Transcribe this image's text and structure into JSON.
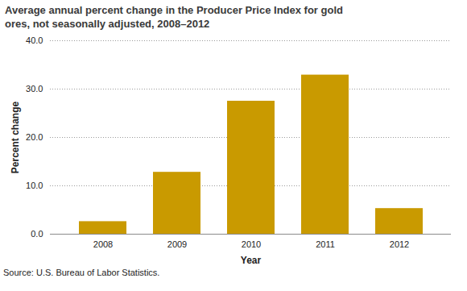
{
  "chart_data": {
    "type": "bar",
    "title": "Average annual percent change in the Producer Price Index for gold ores, not seasonally adjusted, 2008–2012",
    "x_label": "Year",
    "y_label": "Percent change",
    "source": "Source: U.S. Bureau of Labor Statistics.",
    "categories": [
      "2008",
      "2009",
      "2010",
      "2011",
      "2012"
    ],
    "values": [
      2.6,
      12.8,
      27.5,
      32.9,
      5.3
    ],
    "color": "#c99a00",
    "ylim": [
      0,
      40
    ],
    "yticks": [
      {
        "value": 0,
        "label": "0.0"
      },
      {
        "value": 10,
        "label": "10.0"
      },
      {
        "value": 20,
        "label": "20.0"
      },
      {
        "value": 30,
        "label": "30.0"
      },
      {
        "value": 40,
        "label": "40.0"
      }
    ],
    "grid": true
  }
}
